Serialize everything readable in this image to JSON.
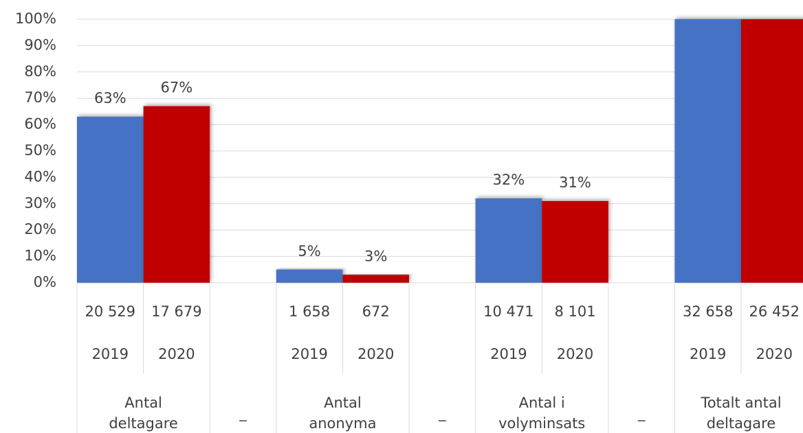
{
  "chart_data": {
    "type": "bar",
    "categories": [
      "2019",
      "2020",
      null,
      "2019",
      "2020",
      null,
      "2019",
      "2020",
      null,
      "2019",
      "2020"
    ],
    "counts": [
      "20 529",
      "17 679",
      null,
      "1 658",
      "672",
      null,
      "10 471",
      "8 101",
      null,
      "32 658",
      "26 452"
    ],
    "groups": [
      "Antal deltagare",
      "_",
      "Antal anonyma",
      "_",
      "Antal i volyminsats",
      "_",
      "Totalt antal deltagare"
    ],
    "values": [
      63,
      67,
      null,
      5,
      3,
      null,
      32,
      31,
      null,
      100,
      100
    ],
    "value_labels": [
      "63%",
      "67%",
      null,
      "5%",
      "3%",
      null,
      "32%",
      "31%",
      null,
      null,
      null
    ],
    "bar_colors": [
      "#4472c4",
      "#c00000"
    ],
    "ylim": [
      0,
      100
    ],
    "yticks": [
      {
        "value": 0,
        "label": "0%"
      },
      {
        "value": 10,
        "label": "10%"
      },
      {
        "value": 20,
        "label": "20%"
      },
      {
        "value": 30,
        "label": "30%"
      },
      {
        "value": 40,
        "label": "40%"
      },
      {
        "value": 50,
        "label": "50%"
      },
      {
        "value": 60,
        "label": "60%"
      },
      {
        "value": 70,
        "label": "70%"
      },
      {
        "value": 80,
        "label": "80%"
      },
      {
        "value": 90,
        "label": "90%"
      },
      {
        "value": 100,
        "label": "100%"
      }
    ],
    "grid": true
  }
}
